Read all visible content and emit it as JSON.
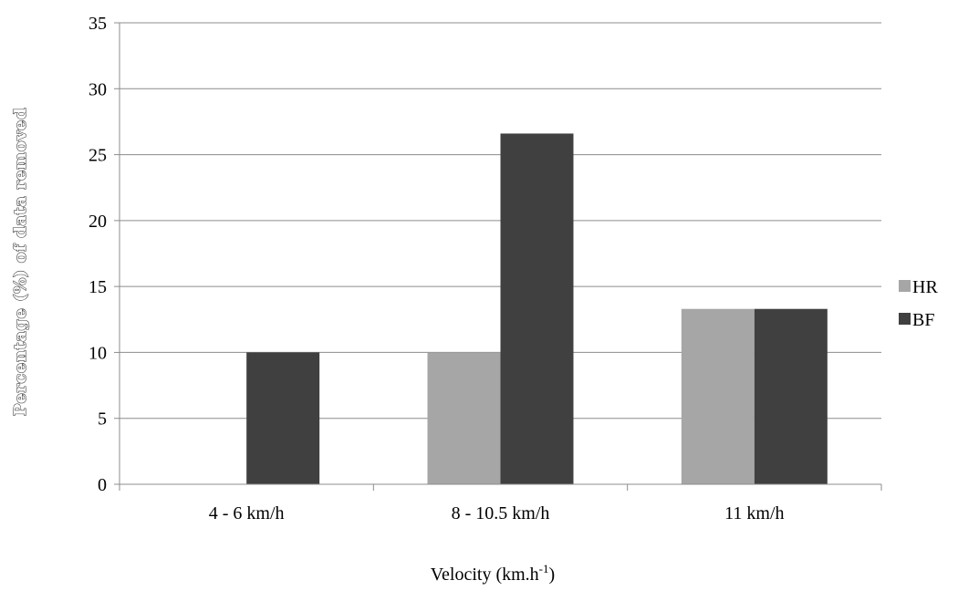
{
  "chart_data": {
    "type": "bar",
    "title": "",
    "xlabel": "Velocity (km.h",
    "xlabel_superscript": "-1",
    "xlabel_suffix": ")",
    "ylabel": "Percentage (%) of data removed",
    "ylim": [
      0,
      35
    ],
    "yticks": [
      0,
      5,
      10,
      15,
      20,
      25,
      30,
      35
    ],
    "grid": true,
    "legend_position": "right",
    "categories": [
      "4 - 6 km/h",
      "8 - 10.5 km/h",
      "11 km/h"
    ],
    "series": [
      {
        "name": "HR",
        "color": "#a6a6a6",
        "values": [
          0,
          10,
          13.3
        ]
      },
      {
        "name": "BF",
        "color": "#404040",
        "values": [
          10,
          26.6,
          13.3
        ]
      }
    ]
  }
}
